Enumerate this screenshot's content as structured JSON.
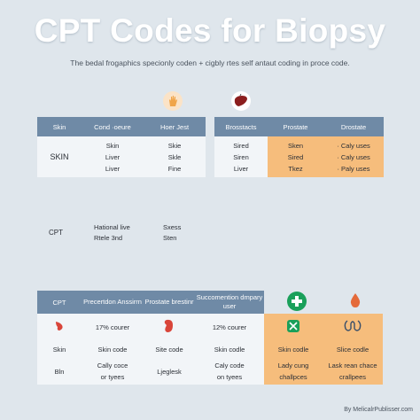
{
  "title": "CPT Codes for Biopsy",
  "subtitle": "The bedal frogaphics specionly coden + cigbly rtes self antaut coding in proce code.",
  "table1": {
    "headers": [
      "Skin",
      "Cond ·oeure",
      "Hoer Jest"
    ],
    "row_label": "SKIN",
    "col2": [
      "Skin",
      "Liver",
      "Liver"
    ],
    "col3": [
      "Skie",
      "Skle",
      "Fine"
    ]
  },
  "table2": {
    "headers": [
      "Brosstacts",
      "Prostate",
      "Drostate"
    ],
    "col1": [
      "Sired",
      "Siren",
      "Liver"
    ],
    "col2": [
      "Sken",
      "Sired",
      "Tkez"
    ],
    "col3": [
      "· Caly uses",
      "· Caly uses",
      "· Paly uses"
    ]
  },
  "mid": {
    "label": "CPT",
    "col2": [
      "Hational live",
      "Rtele 3nd"
    ],
    "col3": [
      "Sxess",
      "Sten"
    ]
  },
  "table3": {
    "headers": [
      "CPT",
      "Precertdon Anssirrn",
      "Prostate brestinr",
      "Succomention dmpary user"
    ],
    "row1": [
      "",
      "17% courer",
      "",
      "12% courer"
    ],
    "row2": [
      "Skin",
      "Skin code",
      "Site code",
      "Skin codle"
    ],
    "row3a": [
      "",
      "Cally coce",
      "",
      "Caly code"
    ],
    "row3b": [
      "Bln",
      "or tyees",
      "Ljeglesk",
      "on tyees"
    ]
  },
  "table3_orange": {
    "row2": [
      "Skin codle",
      "Slice codle"
    ],
    "row3a": [
      "Lady cung",
      "Lask rean chace"
    ],
    "row3b": [
      "challpces",
      "crallpees"
    ]
  },
  "footer": "By MelicalrPublisser.com",
  "colors": {
    "background": "#dfe6ec",
    "header": "#6f8aa6",
    "accent_orange": "#f6bd7c",
    "green": "#1aa05a",
    "red": "#d9453a"
  },
  "icons": [
    "hand-icon",
    "liver-icon",
    "first-aid-icon",
    "no-sign-icon",
    "kidney-icon",
    "drop-icon",
    "stomach-icon"
  ]
}
